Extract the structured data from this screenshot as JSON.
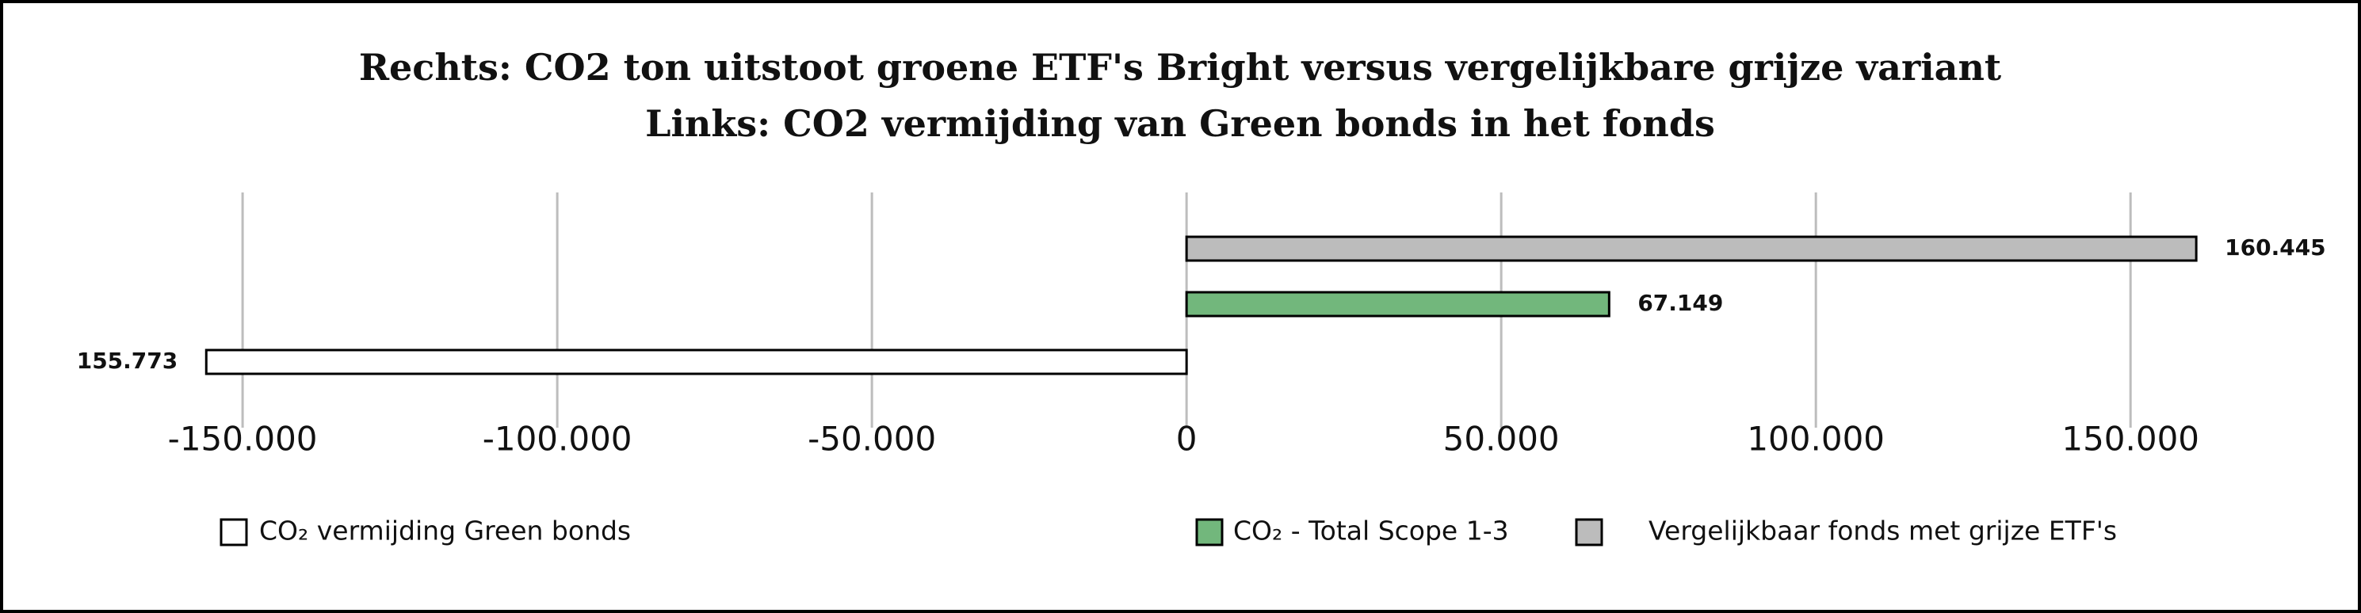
{
  "chart_data": {
    "type": "bar",
    "orientation": "horizontal",
    "title": "Rechts: CO2 ton uitstoot groene ETF's Bright versus vergelijkbare grijze variant",
    "subtitle": "Links: CO2 vermijding van Green bonds in het fonds",
    "categories": [
      null
    ],
    "series": [
      {
        "name": "CO₂  vermijding Green bonds",
        "color": "#ffffff",
        "values": [
          -155773
        ],
        "value_labels": [
          "155.773"
        ]
      },
      {
        "name": "CO₂ - Total Scope 1-3",
        "color": "#72b77c",
        "values": [
          67149
        ],
        "value_labels": [
          "67.149"
        ]
      },
      {
        "name": "Vergelijkbaar fonds met grijze ETF's",
        "color": "#bcbcbc",
        "values": [
          160445
        ],
        "value_labels": [
          "160.445"
        ]
      }
    ],
    "xlim": [
      -165000,
      170000
    ],
    "xticks": [
      {
        "value": -150000,
        "label": "-150.000"
      },
      {
        "value": -100000,
        "label": "-100.000"
      },
      {
        "value": -50000,
        "label": "-50.000"
      },
      0,
      {
        "value": 50000,
        "label": "50.000"
      },
      {
        "value": 100000,
        "label": "100.000"
      },
      {
        "value": 150000,
        "label": "150.000"
      }
    ],
    "grid": true,
    "legend": "bottom"
  }
}
